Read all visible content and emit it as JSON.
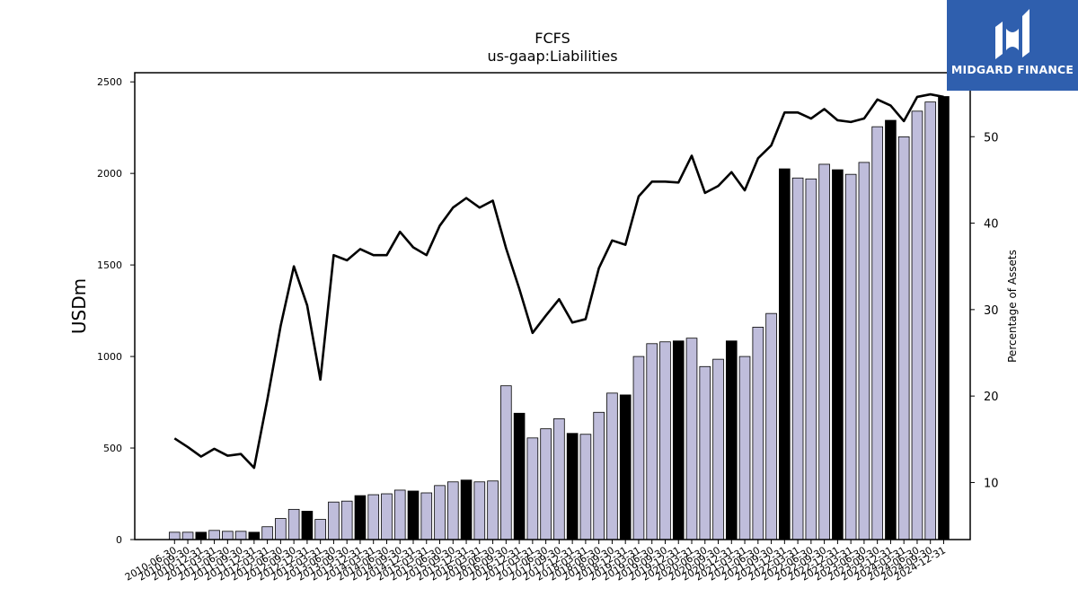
{
  "brand": {
    "name": "MIDGARD FINANCE",
    "color": "#2f5fae"
  },
  "chart_data": {
    "type": "bar",
    "title": "FCFS",
    "subtitle": "us-gaap:Liabilities",
    "ylabel": "USDm",
    "y2label": "Percentage of Assets",
    "ylim": [
      0,
      2550
    ],
    "y2lim": [
      3.4,
      57.4
    ],
    "yticks": [
      0,
      500,
      1000,
      1500,
      2000,
      2500
    ],
    "y2ticks": [
      10,
      20,
      30,
      40,
      50
    ],
    "categories": [
      "2010-06-30",
      "2010-09-30",
      "2010-12-31",
      "2011-03-31",
      "2011-06-30",
      "2011-09-30",
      "2011-12-31",
      "2012-03-31",
      "2012-06-30",
      "2012-09-30",
      "2012-12-31",
      "2013-03-31",
      "2013-06-30",
      "2013-09-30",
      "2013-12-31",
      "2014-03-31",
      "2014-06-30",
      "2014-09-30",
      "2014-12-31",
      "2015-03-31",
      "2015-06-30",
      "2015-09-30",
      "2015-12-31",
      "2016-03-31",
      "2016-06-30",
      "2016-09-30",
      "2016-12-31",
      "2017-03-31",
      "2017-06-30",
      "2017-09-30",
      "2017-12-31",
      "2018-03-31",
      "2018-06-30",
      "2018-09-30",
      "2018-12-31",
      "2019-03-31",
      "2019-06-30",
      "2019-09-30",
      "2019-12-31",
      "2020-03-31",
      "2020-06-30",
      "2020-09-30",
      "2020-12-31",
      "2021-03-31",
      "2021-06-30",
      "2021-09-30",
      "2021-12-31",
      "2022-03-31",
      "2022-06-30",
      "2022-09-30",
      "2022-12-31",
      "2023-03-31",
      "2023-06-30",
      "2023-09-30",
      "2023-12-31",
      "2024-03-31",
      "2024-06-30",
      "2024-09-30",
      "2024-12-31"
    ],
    "bar_colors": {
      "quarter": "#bfbddb",
      "year_end": "#000000",
      "edge": "#000000"
    },
    "series": [
      {
        "type": "bar",
        "axis": "left",
        "values": [
          40,
          40,
          40,
          50,
          45,
          45,
          40,
          70,
          115,
          165,
          155,
          110,
          205,
          210,
          240,
          245,
          250,
          270,
          265,
          255,
          295,
          315,
          325,
          315,
          320,
          840,
          690,
          555,
          605,
          660,
          580,
          575,
          695,
          800,
          790,
          1000,
          1070,
          1080,
          1085,
          1100,
          945,
          985,
          1085,
          1000,
          1160,
          1235,
          2025,
          1975,
          1970,
          2050,
          2020,
          1995,
          2060,
          2255,
          2290,
          2200,
          2340,
          2390,
          2420
        ]
      },
      {
        "type": "line",
        "axis": "right",
        "color": "#000000",
        "values": [
          15.1,
          14.1,
          13.0,
          13.9,
          13.1,
          13.3,
          11.7,
          19.6,
          28.1,
          35.0,
          30.5,
          21.9,
          36.3,
          35.7,
          37.0,
          36.3,
          36.3,
          39.0,
          37.2,
          36.3,
          39.7,
          41.8,
          42.9,
          41.8,
          42.6,
          37.1,
          32.4,
          27.3,
          29.3,
          31.2,
          28.5,
          28.9,
          34.8,
          38.0,
          37.5,
          43.1,
          44.8,
          44.8,
          44.7,
          47.8,
          43.5,
          44.3,
          45.9,
          43.8,
          47.5,
          49.0,
          52.8,
          52.8,
          52.1,
          53.2,
          51.9,
          51.7,
          52.1,
          54.3,
          53.6,
          51.8,
          54.6,
          54.9,
          54.6
        ]
      }
    ],
    "grid": false,
    "legend": "none"
  }
}
